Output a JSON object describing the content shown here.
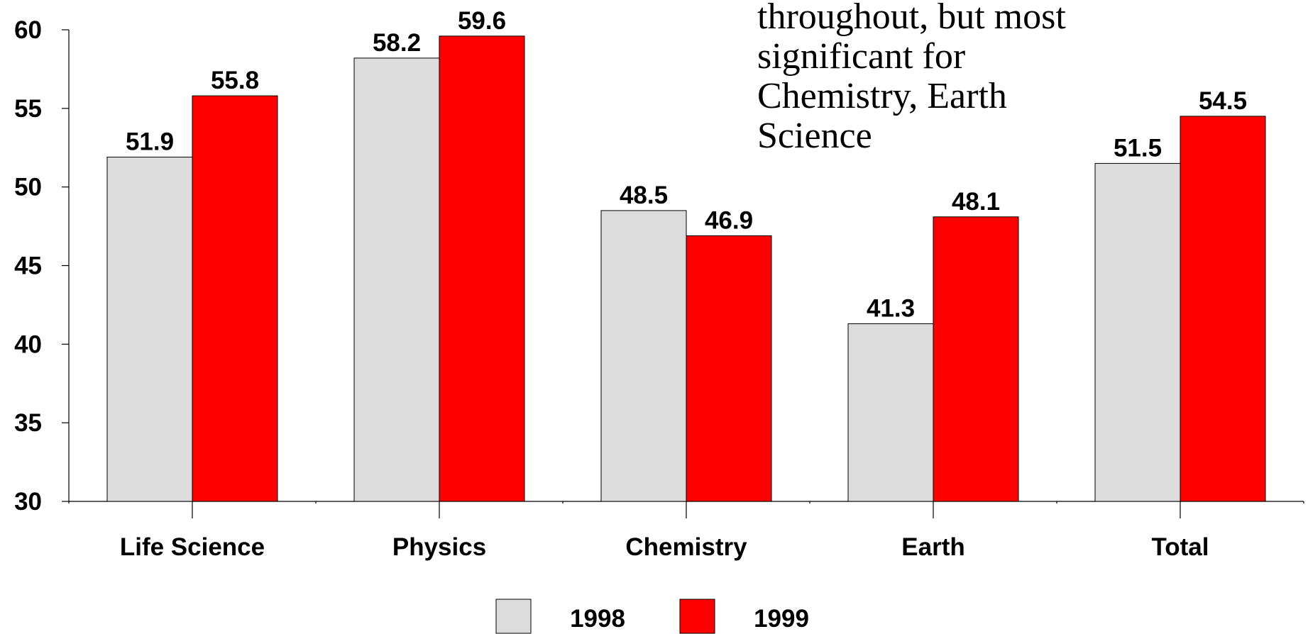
{
  "chart_data": {
    "type": "bar",
    "annotation": [
      "throughout, but most",
      "significant for",
      "Chemistry, Earth",
      "Science"
    ],
    "categories": [
      "Life Science",
      "Physics",
      "Chemistry",
      "Earth",
      "Total"
    ],
    "series": [
      {
        "name": "1998",
        "color": "#dcdcdc",
        "values": [
          51.9,
          58.2,
          48.5,
          41.3,
          51.5
        ]
      },
      {
        "name": "1999",
        "color": "#ff0000",
        "values": [
          55.8,
          59.6,
          46.9,
          48.1,
          54.5
        ]
      }
    ],
    "ylim": [
      30,
      60
    ],
    "yticks": [
      30,
      35,
      40,
      45,
      50,
      55,
      60
    ],
    "grid": false,
    "legend": "bottom"
  }
}
